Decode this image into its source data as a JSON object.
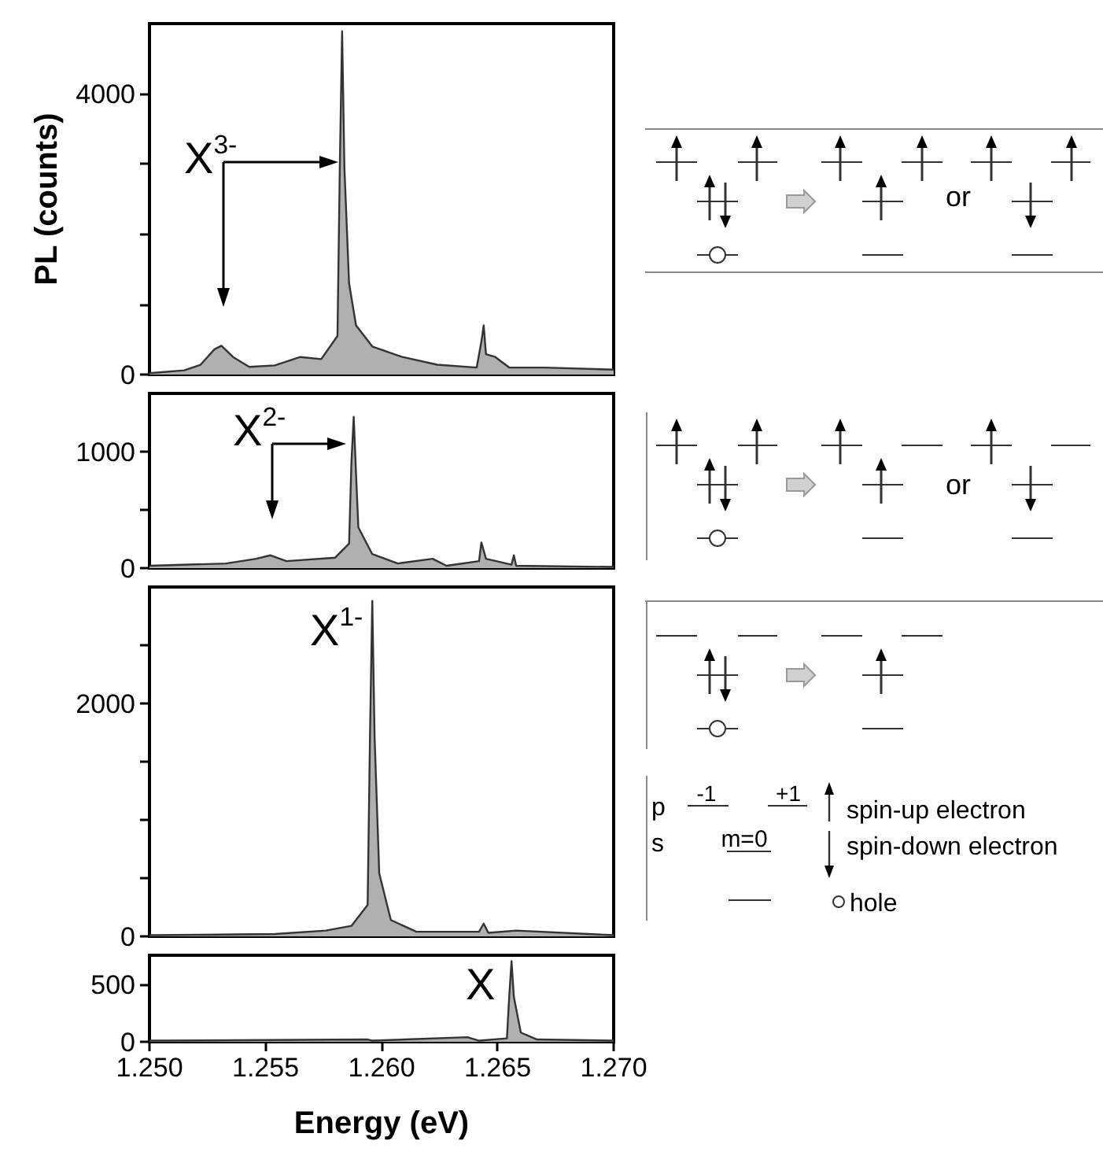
{
  "chart_data": [
    {
      "type": "area",
      "ylabel": "PL (counts)",
      "xlim": [
        1.25,
        1.27
      ],
      "ylim": [
        0,
        5000
      ],
      "yticks": [
        0,
        {
          "value": 1000,
          "label": null
        },
        {
          "value": 2000,
          "label": null
        },
        {
          "value": 3000,
          "label": null
        },
        4000
      ],
      "tick_labels": "y",
      "x": [
        1.25,
        1.2515,
        1.2522,
        1.2528,
        1.2531,
        1.2536,
        1.2543,
        1.2554,
        1.2565,
        1.2574,
        1.2581,
        1.2582,
        1.2583,
        1.2584,
        1.2586,
        1.2589,
        1.2596,
        1.2609,
        1.2624,
        1.2641,
        1.2643,
        1.2644,
        1.2645,
        1.2649,
        1.2655,
        1.267,
        1.27
      ],
      "series": [
        {
          "color": "#b0b0b0",
          "values": [
            20,
            60,
            140,
            360,
            410,
            250,
            110,
            130,
            250,
            220,
            550,
            2940,
            4890,
            2940,
            1300,
            700,
            400,
            250,
            140,
            100,
            470,
            700,
            290,
            250,
            100,
            100,
            70
          ]
        }
      ],
      "annotations": [
        "X$^{3-}$"
      ]
    },
    {
      "type": "area",
      "xlim": [
        1.25,
        1.27
      ],
      "ylim": [
        0,
        1500
      ],
      "yticks": [
        0,
        {
          "value": 500,
          "label": null
        },
        1000
      ],
      "tick_labels": "y",
      "x": [
        1.25,
        1.2533,
        1.2546,
        1.2552,
        1.2559,
        1.258,
        1.2586,
        1.2587,
        1.2588,
        1.2589,
        1.259,
        1.2596,
        1.2607,
        1.2622,
        1.2628,
        1.2642,
        1.2643,
        1.2645,
        1.2656,
        1.2657,
        1.2658,
        1.27
      ],
      "series": [
        {
          "color": "#b0b0b0",
          "values": [
            20,
            40,
            80,
            110,
            60,
            90,
            210,
            900,
            1300,
            810,
            350,
            120,
            40,
            80,
            20,
            60,
            220,
            80,
            30,
            110,
            20,
            10
          ]
        }
      ],
      "annotations": [
        "X$^{2-}$"
      ]
    },
    {
      "type": "area",
      "xlim": [
        1.25,
        1.27
      ],
      "ylim": [
        0,
        3000
      ],
      "yticks": [
        0,
        {
          "value": 500,
          "label": null
        },
        {
          "value": 1000,
          "label": null
        },
        {
          "value": 1500,
          "label": null
        },
        2000,
        {
          "value": 2500,
          "label": null
        }
      ],
      "tick_labels": "y",
      "x": [
        1.25,
        1.2554,
        1.2576,
        1.2587,
        1.2594,
        1.2595,
        1.2596,
        1.2597,
        1.2599,
        1.2604,
        1.2615,
        1.2642,
        1.2644,
        1.2646,
        1.2658,
        1.27
      ],
      "series": [
        {
          "color": "#b0b0b0",
          "values": [
            10,
            20,
            50,
            90,
            270,
            1710,
            2880,
            1710,
            540,
            140,
            40,
            40,
            110,
            30,
            50,
            10
          ]
        }
      ],
      "annotations": [
        "X$^{1-}$"
      ]
    },
    {
      "type": "area",
      "xlabel": "Energy (eV)",
      "xlim": [
        1.25,
        1.27
      ],
      "xticks": [
        {
          "value": 1.25,
          "label": "1.250"
        },
        {
          "value": 1.255,
          "label": "1.255"
        },
        {
          "value": 1.26,
          "label": "1.260"
        },
        {
          "value": 1.265,
          "label": "1.265"
        },
        {
          "value": 1.27,
          "label": "1.270"
        }
      ],
      "ylim": [
        0,
        750
      ],
      "yticks": [
        0,
        500
      ],
      "x": [
        1.25,
        1.2594,
        1.2596,
        1.2637,
        1.2642,
        1.2654,
        1.2655,
        1.2656,
        1.2657,
        1.266,
        1.2667,
        1.27
      ],
      "series": [
        {
          "color": "#b0b0b0",
          "values": [
            10,
            20,
            10,
            40,
            10,
            30,
            390,
            700,
            390,
            80,
            20,
            10
          ]
        }
      ],
      "annotations": [
        "X"
      ]
    },
    {
      "type": "other",
      "annotations": [
        "or",
        "or",
        "p",
        "s",
        "-1",
        "+1",
        "m=0",
        "spin-up electron",
        "spin-down electron",
        "hole"
      ]
    }
  ]
}
